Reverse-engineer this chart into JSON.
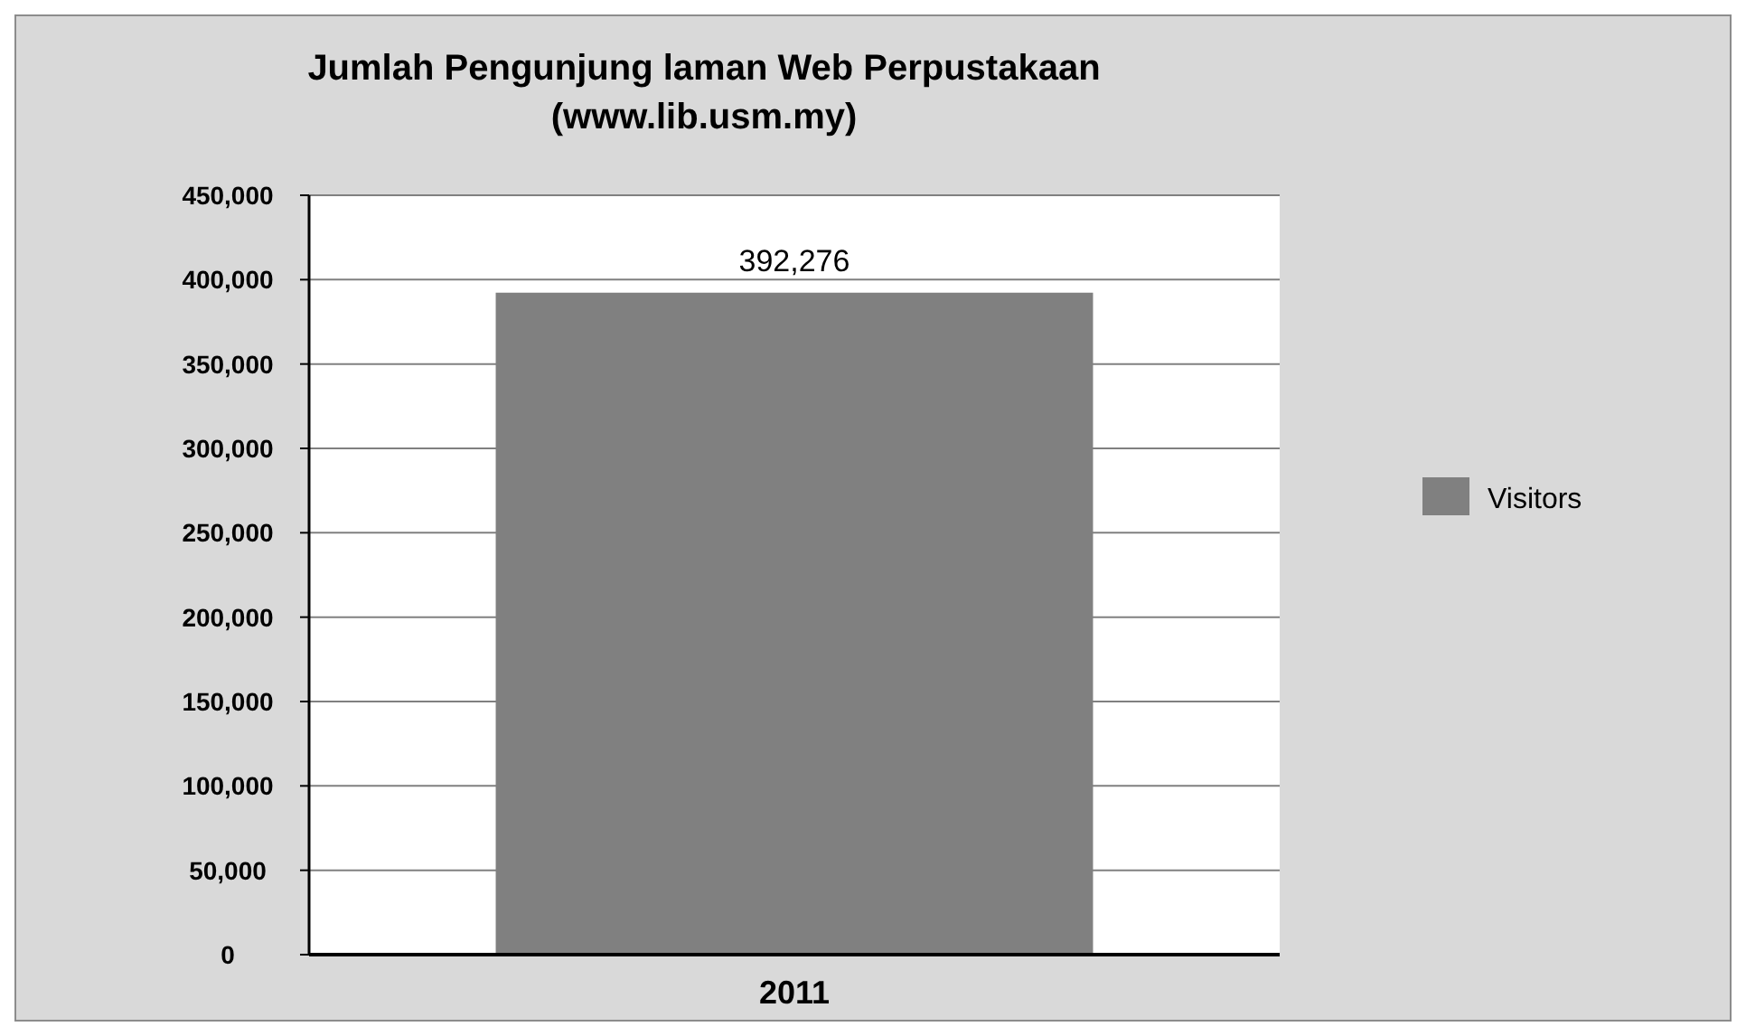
{
  "chart_data": {
    "type": "bar",
    "title": "Jumlah Pengunjung laman Web Perpustakaan\n(www.lib.usm.my)",
    "categories": [
      "2011"
    ],
    "series": [
      {
        "name": "Visitors",
        "color": "#808080",
        "values": [
          392276
        ],
        "value_labels": [
          "392,276"
        ]
      }
    ],
    "ylim": [
      0,
      450000
    ],
    "yticks": [
      0,
      {
        "value": 50000,
        "label": "50,000"
      },
      {
        "value": 100000,
        "label": "100,000"
      },
      {
        "value": 150000,
        "label": "150,000"
      },
      {
        "value": 200000,
        "label": "200,000"
      },
      {
        "value": 250000,
        "label": "250,000"
      },
      {
        "value": 300000,
        "label": "300,000"
      },
      {
        "value": 350000,
        "label": "350,000"
      },
      {
        "value": 400000,
        "label": "400,000"
      },
      {
        "value": 450000,
        "label": "450,000"
      }
    ],
    "grid": "y",
    "legend": "right"
  }
}
